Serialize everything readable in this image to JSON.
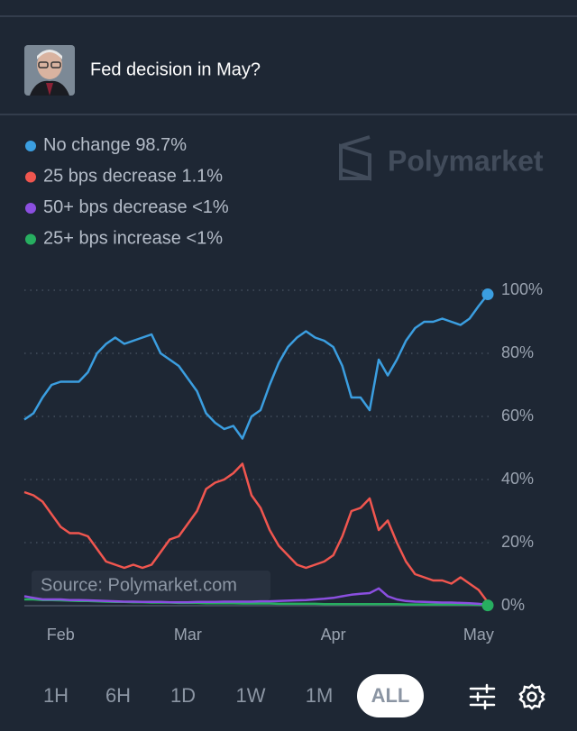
{
  "header": {
    "title": "Fed decision in May?"
  },
  "watermark": "Polymarket",
  "source": "Source: Polymarket.com",
  "time_buttons": [
    "1H",
    "6H",
    "1D",
    "1W",
    "1M",
    "ALL"
  ],
  "active_button": 5,
  "chart_data": {
    "type": "line",
    "categories": [
      null,
      null,
      null,
      null,
      "Feb",
      null,
      null,
      null,
      null,
      null,
      null,
      null,
      null,
      null,
      null,
      null,
      null,
      null,
      "Mar",
      null,
      null,
      null,
      null,
      null,
      null,
      null,
      null,
      null,
      null,
      null,
      null,
      null,
      null,
      null,
      "Apr",
      null,
      null,
      null,
      null,
      null,
      null,
      null,
      null,
      null,
      null,
      null,
      null,
      null,
      null,
      null,
      "May",
      null
    ],
    "series": [
      {
        "name": "No change",
        "last_label": "98.7%",
        "color": "#3b9ee0",
        "end_marker": true,
        "values": [
          59,
          61,
          66,
          70,
          71,
          71,
          71,
          74,
          80,
          83,
          85,
          83,
          84,
          85,
          86,
          80,
          78,
          76,
          72,
          68,
          61,
          58,
          56,
          57,
          53,
          60,
          62,
          70,
          77,
          82,
          85,
          87,
          85,
          84,
          82,
          76,
          66,
          66,
          62,
          78,
          73,
          78,
          84,
          88,
          90,
          90,
          91,
          90,
          89,
          91,
          95,
          98.7
        ]
      },
      {
        "name": "25 bps decrease",
        "last_label": "1.1%",
        "color": "#f0564f",
        "end_marker": false,
        "values": [
          36,
          35,
          33,
          29,
          25,
          23,
          23,
          22,
          18,
          14,
          13,
          12,
          13,
          12,
          13,
          17,
          21,
          22,
          26,
          30,
          37,
          39,
          40,
          42,
          45,
          35,
          31,
          24,
          19,
          16,
          13,
          12,
          13,
          14,
          16,
          22,
          30,
          31,
          34,
          24,
          27,
          20,
          14,
          10,
          9,
          8,
          8,
          7,
          9,
          7,
          5,
          1.1
        ]
      },
      {
        "name": "50+ bps decrease",
        "last_label": "<1%",
        "color": "#8b4fe0",
        "end_marker": false,
        "values": [
          3,
          2.5,
          2,
          2,
          2,
          1.8,
          1.8,
          1.7,
          1.6,
          1.5,
          1.4,
          1.3,
          1.3,
          1.2,
          1.2,
          1.2,
          1.1,
          1.1,
          1.1,
          1.2,
          1.2,
          1.2,
          1.3,
          1.3,
          1.3,
          1.3,
          1.4,
          1.4,
          1.5,
          1.6,
          1.7,
          1.8,
          2,
          2.2,
          2.5,
          3,
          3.5,
          3.8,
          4,
          5.5,
          3,
          2,
          1.5,
          1.3,
          1.2,
          1.1,
          1,
          1,
          0.9,
          0.8,
          0.6,
          0.3
        ]
      },
      {
        "name": "25+ bps increase",
        "last_label": "<1%",
        "color": "#27ae60",
        "end_marker": true,
        "values": [
          2,
          2,
          1.8,
          1.8,
          1.7,
          1.6,
          1.5,
          1.5,
          1.4,
          1.3,
          1.2,
          1.2,
          1.1,
          1.1,
          1,
          1,
          1,
          0.9,
          0.9,
          0.9,
          0.8,
          0.8,
          0.8,
          0.8,
          0.7,
          0.7,
          0.7,
          0.7,
          0.6,
          0.6,
          0.6,
          0.6,
          0.6,
          0.5,
          0.5,
          0.5,
          0.5,
          0.5,
          0.5,
          0.5,
          0.5,
          0.5,
          0.4,
          0.4,
          0.4,
          0.4,
          0.4,
          0.4,
          0.4,
          0.4,
          0.3,
          0.1
        ]
      }
    ],
    "ylim": [
      0,
      100
    ],
    "yticks": [
      {
        "value": 0,
        "label": "0%"
      },
      {
        "value": 20,
        "label": "20%"
      },
      {
        "value": 40,
        "label": "40%"
      },
      {
        "value": 60,
        "label": "60%"
      },
      {
        "value": 80,
        "label": "80%"
      },
      {
        "value": 100,
        "label": "100%"
      }
    ],
    "grid": true
  }
}
